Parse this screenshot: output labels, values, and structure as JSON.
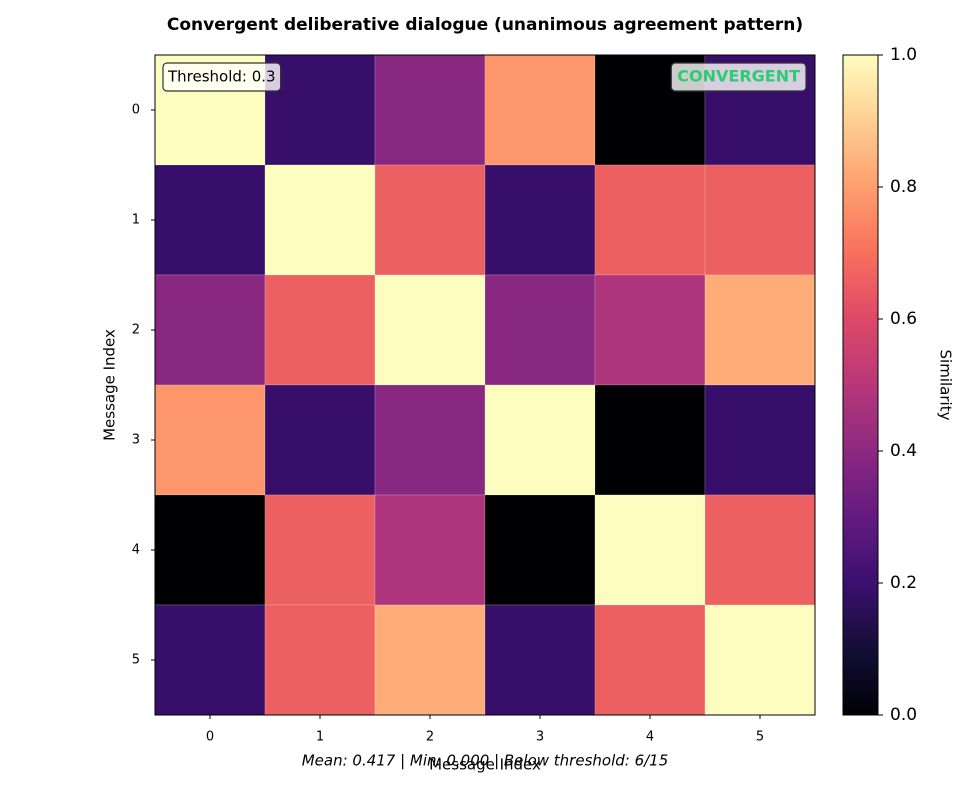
{
  "chart_data": {
    "type": "heatmap",
    "title": "Convergent deliberative dialogue (unanimous agreement pattern)",
    "x_label": "Message Index",
    "y_label": "Message Index",
    "x_categories": [
      "0",
      "1",
      "2",
      "3",
      "4",
      "5"
    ],
    "y_categories": [
      "0",
      "1",
      "2",
      "3",
      "4",
      "5"
    ],
    "values": [
      [
        1.0,
        0.19,
        0.39,
        0.78,
        0.0,
        0.19
      ],
      [
        0.19,
        1.0,
        0.66,
        0.19,
        0.66,
        0.66
      ],
      [
        0.39,
        0.66,
        1.0,
        0.39,
        0.48,
        0.83
      ],
      [
        0.78,
        0.19,
        0.39,
        1.0,
        0.0,
        0.19
      ],
      [
        0.0,
        0.66,
        0.48,
        0.0,
        1.0,
        0.66
      ],
      [
        0.19,
        0.66,
        0.83,
        0.19,
        0.66,
        1.0
      ]
    ],
    "colormap": "magma",
    "colorbar_label": "Similarity",
    "ylim": [
      0,
      1
    ],
    "yticks": [
      {
        "value": 0,
        "label": "0.0"
      },
      0.2,
      0.4,
      0.6,
      0.8,
      {
        "value": 1,
        "label": "1.0"
      }
    ],
    "annotations": {
      "threshold": "Threshold: 0.3",
      "status": "CONVERGENT",
      "status_color": "#2ecc71"
    },
    "footer": "Mean: 0.417 | Min: 0.000 | Below threshold: 6/15"
  }
}
